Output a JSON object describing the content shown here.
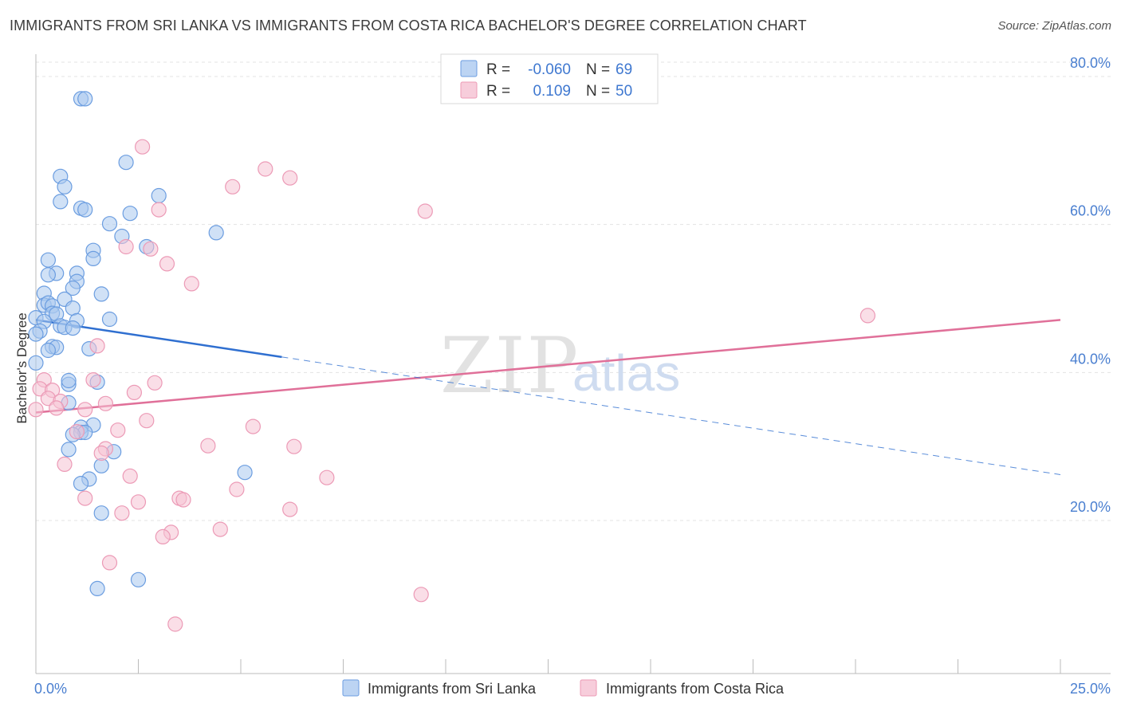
{
  "title": "IMMIGRANTS FROM SRI LANKA VS IMMIGRANTS FROM COSTA RICA BACHELOR'S DEGREE CORRELATION CHART",
  "source": "Source: ZipAtlas.com",
  "watermark": {
    "part1": "ZIP",
    "part2": "atlas"
  },
  "legend": {
    "rows": [
      {
        "r_label": "R =",
        "r_value": "-0.060",
        "n_label": "N =",
        "n_value": "69"
      },
      {
        "r_label": "R =",
        "r_value": "0.109",
        "n_label": "N =",
        "n_value": "50"
      }
    ]
  },
  "bottom_legend": {
    "series1": "Immigrants from Sri Lanka",
    "series2": "Immigrants from Costa Rica"
  },
  "colors": {
    "blue_fill": "#a9c8ef",
    "blue_stroke": "#6b9de0",
    "blue_line": "#2f6fd0",
    "pink_fill": "#f5c2d3",
    "pink_stroke": "#ec9ab6",
    "pink_line": "#e07099",
    "grid": "#e3e3e3",
    "axis_text": "#4a7fd0"
  },
  "chart_data": {
    "type": "scatter",
    "title": "IMMIGRANTS FROM SRI LANKA VS IMMIGRANTS FROM COSTA RICA BACHELOR'S DEGREE CORRELATION CHART",
    "xlabel": "",
    "ylabel": "Bachelor's Degree",
    "xlim": [
      0,
      25
    ],
    "ylim": [
      0,
      82
    ],
    "x_tick_labels": [
      "0.0%",
      "25.0%"
    ],
    "y_ticks": [
      20,
      40,
      60,
      80
    ],
    "y_tick_labels": [
      "20.0%",
      "40.0%",
      "60.0%",
      "80.0%"
    ],
    "grid": true,
    "legend_position": "top-center",
    "series": [
      {
        "name": "Immigrants from Sri Lanka",
        "color": "blue",
        "R": -0.06,
        "N": 69,
        "trend": {
          "solid": [
            [
              0,
              47.1
            ],
            [
              6,
              42.1
            ]
          ],
          "dashed": [
            [
              6,
              42.1
            ],
            [
              25,
              26.2
            ]
          ]
        },
        "points": [
          [
            1.1,
            77.0
          ],
          [
            1.2,
            77.0
          ],
          [
            2.2,
            68.4
          ],
          [
            0.6,
            66.5
          ],
          [
            0.7,
            65.1
          ],
          [
            3.0,
            63.9
          ],
          [
            0.6,
            63.1
          ],
          [
            1.1,
            62.2
          ],
          [
            1.2,
            62.0
          ],
          [
            2.3,
            61.5
          ],
          [
            1.8,
            60.1
          ],
          [
            4.4,
            58.9
          ],
          [
            2.1,
            58.4
          ],
          [
            2.7,
            57.0
          ],
          [
            1.4,
            56.5
          ],
          [
            1.4,
            55.4
          ],
          [
            0.3,
            55.2
          ],
          [
            0.5,
            53.4
          ],
          [
            0.3,
            53.2
          ],
          [
            1.0,
            53.4
          ],
          [
            1.0,
            52.3
          ],
          [
            0.9,
            51.4
          ],
          [
            1.6,
            50.6
          ],
          [
            0.2,
            50.7
          ],
          [
            0.2,
            49.1
          ],
          [
            0.3,
            49.4
          ],
          [
            0.4,
            49.0
          ],
          [
            0.7,
            49.9
          ],
          [
            0.9,
            48.7
          ],
          [
            0.4,
            48.0
          ],
          [
            0.5,
            47.9
          ],
          [
            0.0,
            47.4
          ],
          [
            0.2,
            46.9
          ],
          [
            1.0,
            47.0
          ],
          [
            1.8,
            47.2
          ],
          [
            0.6,
            46.3
          ],
          [
            0.7,
            46.1
          ],
          [
            0.9,
            46.0
          ],
          [
            0.1,
            45.6
          ],
          [
            0.0,
            45.2
          ],
          [
            0.4,
            43.5
          ],
          [
            0.5,
            43.4
          ],
          [
            0.3,
            43.0
          ],
          [
            1.3,
            43.2
          ],
          [
            0.0,
            41.3
          ],
          [
            0.8,
            38.4
          ],
          [
            0.8,
            38.9
          ],
          [
            1.5,
            38.7
          ],
          [
            0.8,
            35.9
          ],
          [
            1.4,
            32.9
          ],
          [
            1.1,
            32.6
          ],
          [
            1.1,
            31.9
          ],
          [
            1.2,
            31.9
          ],
          [
            0.9,
            31.6
          ],
          [
            0.8,
            29.6
          ],
          [
            1.9,
            29.3
          ],
          [
            1.6,
            27.4
          ],
          [
            1.3,
            25.6
          ],
          [
            1.1,
            25.0
          ],
          [
            5.1,
            26.5
          ],
          [
            1.6,
            21.0
          ],
          [
            2.5,
            12.0
          ],
          [
            1.5,
            10.8
          ]
        ]
      },
      {
        "name": "Immigrants from Costa Rica",
        "color": "pink",
        "R": 0.109,
        "N": 50,
        "trend": {
          "solid": [
            [
              0,
              34.6
            ],
            [
              25,
              47.1
            ]
          ]
        },
        "points": [
          [
            2.6,
            70.5
          ],
          [
            5.6,
            67.5
          ],
          [
            6.2,
            66.3
          ],
          [
            4.8,
            65.1
          ],
          [
            3.0,
            62.0
          ],
          [
            9.5,
            61.8
          ],
          [
            2.2,
            57.0
          ],
          [
            2.8,
            56.7
          ],
          [
            3.2,
            54.7
          ],
          [
            3.8,
            52.0
          ],
          [
            20.3,
            47.7
          ],
          [
            1.5,
            43.6
          ],
          [
            1.4,
            39.0
          ],
          [
            0.2,
            39.0
          ],
          [
            0.1,
            37.8
          ],
          [
            0.4,
            37.6
          ],
          [
            2.9,
            38.6
          ],
          [
            2.4,
            37.3
          ],
          [
            0.3,
            36.5
          ],
          [
            0.6,
            36.1
          ],
          [
            1.7,
            35.8
          ],
          [
            0.0,
            35.0
          ],
          [
            0.5,
            35.2
          ],
          [
            1.2,
            35.0
          ],
          [
            2.7,
            33.5
          ],
          [
            5.3,
            32.7
          ],
          [
            2.0,
            32.2
          ],
          [
            1.0,
            32.0
          ],
          [
            1.7,
            29.7
          ],
          [
            4.2,
            30.1
          ],
          [
            6.3,
            30.0
          ],
          [
            1.6,
            29.1
          ],
          [
            0.7,
            27.6
          ],
          [
            2.3,
            26.0
          ],
          [
            7.1,
            25.8
          ],
          [
            4.9,
            24.2
          ],
          [
            1.2,
            23.0
          ],
          [
            3.5,
            23.0
          ],
          [
            3.6,
            22.8
          ],
          [
            2.5,
            22.5
          ],
          [
            6.2,
            21.5
          ],
          [
            2.1,
            21.0
          ],
          [
            4.5,
            18.8
          ],
          [
            3.3,
            18.4
          ],
          [
            3.1,
            17.8
          ],
          [
            1.8,
            14.3
          ],
          [
            9.4,
            10.0
          ],
          [
            3.4,
            6.0
          ]
        ]
      }
    ]
  }
}
